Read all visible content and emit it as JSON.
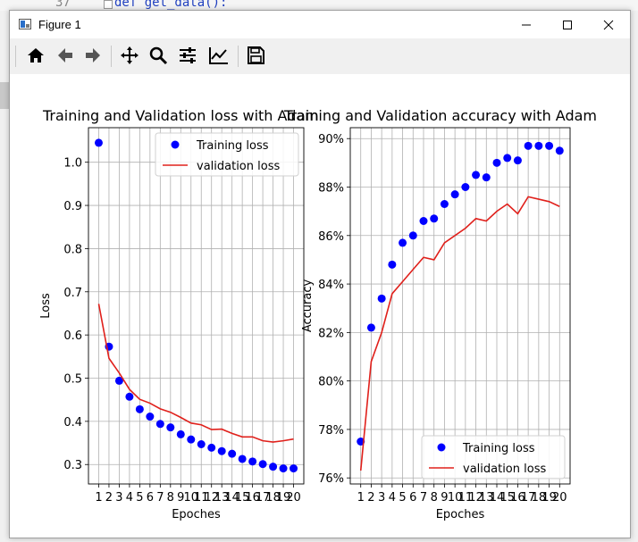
{
  "editor": {
    "line_number": "37",
    "code": "def get_data():"
  },
  "window": {
    "title": "Figure 1"
  },
  "toolbar": {
    "buttons": [
      {
        "name": "home"
      },
      {
        "name": "back"
      },
      {
        "name": "forward"
      },
      {
        "name": "pan"
      },
      {
        "name": "zoom"
      },
      {
        "name": "configure-subplots"
      },
      {
        "name": "edit-axis"
      },
      {
        "name": "save"
      }
    ]
  },
  "chart_data": [
    {
      "type": "line",
      "title": "Training and Validation loss with Adam",
      "xlabel": "Epoches",
      "ylabel": "Loss",
      "x": [
        1,
        2,
        3,
        4,
        5,
        6,
        7,
        8,
        9,
        10,
        11,
        12,
        13,
        14,
        15,
        16,
        17,
        18,
        19,
        20
      ],
      "xticks": [
        "1",
        "2",
        "3",
        "4",
        "5",
        "6",
        "7",
        "8",
        "9",
        "10",
        "11",
        "12",
        "13",
        "14",
        "15",
        "16",
        "17",
        "18",
        "19",
        "20"
      ],
      "yticks": [
        "0.3",
        "0.4",
        "0.5",
        "0.6",
        "0.7",
        "0.8",
        "0.9",
        "1.0"
      ],
      "ylim": [
        0.255,
        1.08
      ],
      "xlim": [
        0,
        21
      ],
      "grid": true,
      "legend": "top-right",
      "series": [
        {
          "name": "Training loss",
          "style": "points",
          "color": "#0000ff",
          "values": [
            1.045,
            0.573,
            0.494,
            0.457,
            0.428,
            0.411,
            0.394,
            0.386,
            0.37,
            0.358,
            0.347,
            0.339,
            0.331,
            0.325,
            0.313,
            0.307,
            0.301,
            0.295,
            0.291,
            0.291
          ]
        },
        {
          "name": "validation loss",
          "style": "line",
          "color": "#e0201b",
          "values": [
            0.672,
            0.546,
            0.512,
            0.474,
            0.451,
            0.442,
            0.429,
            0.421,
            0.409,
            0.396,
            0.392,
            0.381,
            0.382,
            0.372,
            0.364,
            0.364,
            0.355,
            0.352,
            0.355,
            0.359
          ]
        }
      ]
    },
    {
      "type": "line",
      "title": "Training and Validation accuracy with Adam",
      "xlabel": "Epoches",
      "ylabel": "Accuracy",
      "x": [
        1,
        2,
        3,
        4,
        5,
        6,
        7,
        8,
        9,
        10,
        11,
        12,
        13,
        14,
        15,
        16,
        17,
        18,
        19,
        20
      ],
      "xticks": [
        "1",
        "2",
        "3",
        "4",
        "5",
        "6",
        "7",
        "8",
        "9",
        "10",
        "11",
        "12",
        "13",
        "14",
        "15",
        "16",
        "17",
        "18",
        "19",
        "20"
      ],
      "ytick_values": [
        0.76,
        0.78,
        0.8,
        0.82,
        0.84,
        0.86,
        0.88,
        0.9
      ],
      "yticks": [
        "76%",
        "78%",
        "80%",
        "82%",
        "84%",
        "86%",
        "88%",
        "90%"
      ],
      "ylim": [
        0.7575,
        0.9045
      ],
      "xlim": [
        0,
        21
      ],
      "grid": true,
      "legend": "bottom-right",
      "series": [
        {
          "name": "Training loss",
          "style": "points",
          "color": "#0000ff",
          "values": [
            0.775,
            0.822,
            0.834,
            0.848,
            0.857,
            0.86,
            0.866,
            0.867,
            0.873,
            0.877,
            0.88,
            0.885,
            0.884,
            0.89,
            0.892,
            0.891,
            0.897,
            0.897,
            0.897,
            0.895
          ]
        },
        {
          "name": "validation loss",
          "style": "line",
          "color": "#e0201b",
          "values": [
            0.763,
            0.808,
            0.82,
            0.836,
            0.841,
            0.846,
            0.851,
            0.85,
            0.857,
            0.86,
            0.863,
            0.867,
            0.866,
            0.87,
            0.873,
            0.869,
            0.876,
            0.875,
            0.874,
            0.872
          ]
        }
      ]
    }
  ]
}
